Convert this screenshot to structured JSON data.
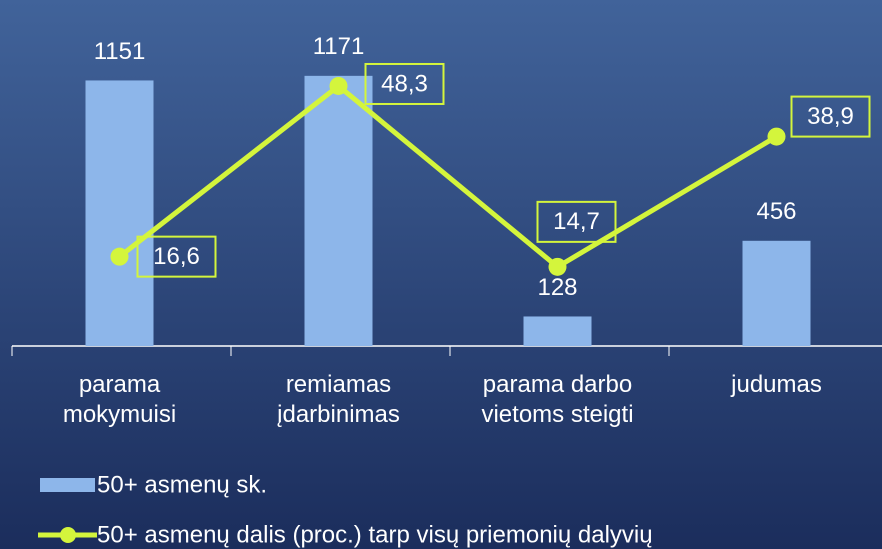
{
  "chart_data": {
    "type": "bar",
    "categories": [
      "parama\nmokymuisi",
      "remiamas\nįdarbinimas",
      "parama darbo\nvietoms steigti",
      "judumas"
    ],
    "series": [
      {
        "name": "50+ asmenų sk.",
        "type": "bar",
        "color": "#8db6ea",
        "values": [
          1151,
          1171,
          128,
          456
        ]
      },
      {
        "name": "50+ asmenų dalis (proc.) tarp visų priemonių dalyvių",
        "type": "line",
        "axis": "y2",
        "color": "#d4f53c",
        "values": [
          16.6,
          48.3,
          14.7,
          38.9
        ],
        "value_labels": [
          "16,6",
          "48,3",
          "14,7",
          "38,9"
        ]
      }
    ],
    "ylim": [
      0,
      1400
    ],
    "y2lim": [
      0,
      60
    ]
  }
}
